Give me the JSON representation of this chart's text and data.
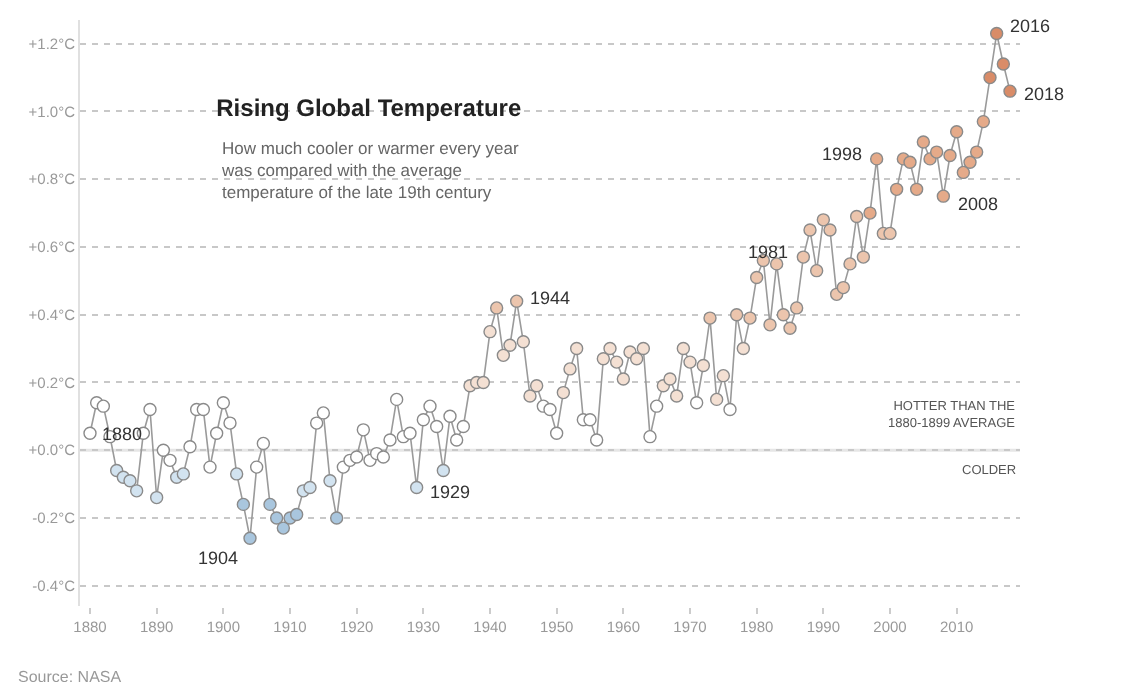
{
  "chart_data": {
    "type": "line",
    "title": "Rising Global Temperature",
    "subtitle": "How much cooler or warmer every year\nwas compared with the average\ntemperature of the late 19th century",
    "x": [
      1880,
      1881,
      1882,
      1883,
      1884,
      1885,
      1886,
      1887,
      1888,
      1889,
      1890,
      1891,
      1892,
      1893,
      1894,
      1895,
      1896,
      1897,
      1898,
      1899,
      1900,
      1901,
      1902,
      1903,
      1904,
      1905,
      1906,
      1907,
      1908,
      1909,
      1910,
      1911,
      1912,
      1913,
      1914,
      1915,
      1916,
      1917,
      1918,
      1919,
      1920,
      1921,
      1922,
      1923,
      1924,
      1925,
      1926,
      1927,
      1928,
      1929,
      1930,
      1931,
      1932,
      1933,
      1934,
      1935,
      1936,
      1937,
      1938,
      1939,
      1940,
      1941,
      1942,
      1943,
      1944,
      1945,
      1946,
      1947,
      1948,
      1949,
      1950,
      1951,
      1952,
      1953,
      1954,
      1955,
      1956,
      1957,
      1958,
      1959,
      1960,
      1961,
      1962,
      1963,
      1964,
      1965,
      1966,
      1967,
      1968,
      1969,
      1970,
      1971,
      1972,
      1973,
      1974,
      1975,
      1976,
      1977,
      1978,
      1979,
      1980,
      1981,
      1982,
      1983,
      1984,
      1985,
      1986,
      1987,
      1988,
      1989,
      1990,
      1991,
      1992,
      1993,
      1994,
      1995,
      1996,
      1997,
      1998,
      1999,
      2000,
      2001,
      2002,
      2003,
      2004,
      2005,
      2006,
      2007,
      2008,
      2009,
      2010,
      2011,
      2012,
      2013,
      2014,
      2015,
      2016,
      2017,
      2018
    ],
    "series": [
      {
        "color": "#9a9a9a",
        "values": [
          0.05,
          0.14,
          0.13,
          0.04,
          -0.06,
          -0.08,
          -0.09,
          -0.12,
          0.05,
          0.12,
          -0.14,
          0.0,
          -0.03,
          -0.08,
          -0.07,
          0.01,
          0.12,
          0.12,
          -0.05,
          0.05,
          0.14,
          0.08,
          -0.07,
          -0.16,
          -0.26,
          -0.05,
          0.02,
          -0.16,
          -0.2,
          -0.23,
          -0.2,
          -0.19,
          -0.12,
          -0.11,
          0.08,
          0.11,
          -0.09,
          -0.2,
          -0.05,
          -0.03,
          -0.02,
          0.06,
          -0.03,
          -0.01,
          -0.02,
          0.03,
          0.15,
          0.04,
          0.05,
          -0.11,
          0.09,
          0.13,
          0.07,
          -0.06,
          0.1,
          0.03,
          0.07,
          0.19,
          0.2,
          0.2,
          0.35,
          0.42,
          0.28,
          0.31,
          0.44,
          0.32,
          0.16,
          0.19,
          0.13,
          0.12,
          0.05,
          0.17,
          0.24,
          0.3,
          0.09,
          0.09,
          0.03,
          0.27,
          0.3,
          0.26,
          0.21,
          0.29,
          0.27,
          0.3,
          0.04,
          0.13,
          0.19,
          0.21,
          0.16,
          0.3,
          0.26,
          0.14,
          0.25,
          0.39,
          0.15,
          0.22,
          0.12,
          0.4,
          0.3,
          0.39,
          0.51,
          0.56,
          0.37,
          0.55,
          0.4,
          0.36,
          0.42,
          0.57,
          0.65,
          0.53,
          0.68,
          0.65,
          0.46,
          0.48,
          0.55,
          0.69,
          0.57,
          0.7,
          0.86,
          0.64,
          0.64,
          0.77,
          0.86,
          0.85,
          0.77,
          0.91,
          0.86,
          0.88,
          0.75,
          0.87,
          0.94,
          0.82,
          0.85,
          0.88,
          0.97,
          1.1,
          1.23,
          1.14,
          1.06
        ],
        "colors": [
          "#ffffff",
          "#ffffff",
          "#ffffff",
          "#ffffff",
          "#d2e3f0",
          "#d2e3f0",
          "#d2e3f0",
          "#d2e3f0",
          "#ffffff",
          "#ffffff",
          "#d2e3f0",
          "#ffffff",
          "#ffffff",
          "#d2e3f0",
          "#d2e3f0",
          "#ffffff",
          "#ffffff",
          "#ffffff",
          "#ffffff",
          "#ffffff",
          "#ffffff",
          "#ffffff",
          "#d2e3f0",
          "#a9c6de",
          "#a9c6de",
          "#ffffff",
          "#ffffff",
          "#a9c6de",
          "#a9c6de",
          "#a9c6de",
          "#a9c6de",
          "#a9c6de",
          "#d2e3f0",
          "#d2e3f0",
          "#ffffff",
          "#ffffff",
          "#d2e3f0",
          "#a9c6de",
          "#ffffff",
          "#ffffff",
          "#ffffff",
          "#ffffff",
          "#ffffff",
          "#ffffff",
          "#ffffff",
          "#ffffff",
          "#ffffff",
          "#ffffff",
          "#ffffff",
          "#d2e3f0",
          "#ffffff",
          "#ffffff",
          "#ffffff",
          "#d2e3f0",
          "#ffffff",
          "#ffffff",
          "#ffffff",
          "#f4e0d3",
          "#f4e0d3",
          "#f4e0d3",
          "#f4e0d3",
          "#ecc5ad",
          "#f4e0d3",
          "#f4e0d3",
          "#ecc5ad",
          "#f4e0d3",
          "#f4e0d3",
          "#f4e0d3",
          "#ffffff",
          "#ffffff",
          "#ffffff",
          "#f4e0d3",
          "#f4e0d3",
          "#f4e0d3",
          "#ffffff",
          "#ffffff",
          "#ffffff",
          "#f4e0d3",
          "#f4e0d3",
          "#f4e0d3",
          "#f4e0d3",
          "#f4e0d3",
          "#f4e0d3",
          "#f4e0d3",
          "#ffffff",
          "#ffffff",
          "#f4e0d3",
          "#f4e0d3",
          "#f4e0d3",
          "#f4e0d3",
          "#f4e0d3",
          "#ffffff",
          "#f4e0d3",
          "#ecc5ad",
          "#f4e0d3",
          "#f4e0d3",
          "#ffffff",
          "#ecc5ad",
          "#f4e0d3",
          "#ecc5ad",
          "#ecc5ad",
          "#ecc5ad",
          "#ecc5ad",
          "#ecc5ad",
          "#ecc5ad",
          "#ecc5ad",
          "#ecc5ad",
          "#ecc5ad",
          "#ecc5ad",
          "#ecc5ad",
          "#ecc5ad",
          "#ecc5ad",
          "#ecc5ad",
          "#ecc5ad",
          "#ecc5ad",
          "#ecc5ad",
          "#ecc5ad",
          "#e5aa89",
          "#e5aa89",
          "#ecc5ad",
          "#ecc5ad",
          "#e5aa89",
          "#e5aa89",
          "#e5aa89",
          "#e5aa89",
          "#e5aa89",
          "#e5aa89",
          "#e5aa89",
          "#e5aa89",
          "#e5aa89",
          "#e5aa89",
          "#e5aa89",
          "#e5aa89",
          "#e5aa89",
          "#e5aa89",
          "#d98c68",
          "#d98c68",
          "#d98c68",
          "#d98c68"
        ]
      }
    ],
    "xlim": [
      1878.5,
      2019.5
    ],
    "xticks": [
      1880,
      1890,
      1900,
      1910,
      1920,
      1930,
      1940,
      1950,
      1960,
      1970,
      1980,
      1990,
      2000,
      2010
    ],
    "ylim": [
      -0.46,
      1.27
    ],
    "yticks": [
      {
        "value": 1.2,
        "label": "+1.2°C"
      },
      {
        "value": 1.0,
        "label": "+1.0°C"
      },
      {
        "value": 0.8,
        "label": "+0.8°C"
      },
      {
        "value": 0.6,
        "label": "+0.6°C"
      },
      {
        "value": 0.4,
        "label": "+0.4°C"
      },
      {
        "value": 0.2,
        "label": "+0.2°C"
      },
      {
        "value": 0.0,
        "label": "+0.0°C"
      },
      {
        "value": -0.2,
        "label": "-0.2°C"
      },
      {
        "value": -0.4,
        "label": "-0.4°C"
      }
    ],
    "grid": "y",
    "legend": false,
    "marker": "circle",
    "line_style": "solid",
    "ref_lines": [
      {
        "axis": "y",
        "value": 0,
        "color": "#e6e6e6"
      }
    ],
    "annotations": [
      {
        "text": "1880",
        "x": 1880,
        "y": 0.05
      },
      {
        "text": "1904",
        "x": 1904,
        "y": -0.26
      },
      {
        "text": "1929",
        "x": 1929,
        "y": -0.11
      },
      {
        "text": "1944",
        "x": 1944,
        "y": 0.44
      },
      {
        "text": "1981",
        "x": 1981,
        "y": 0.56
      },
      {
        "text": "1998",
        "x": 1998,
        "y": 0.86
      },
      {
        "text": "2008",
        "x": 2008,
        "y": 0.75
      },
      {
        "text": "2016",
        "x": 2016,
        "y": 1.23
      },
      {
        "text": "2018",
        "x": 2018,
        "y": 1.06
      },
      "HOTTER THAN THE\n1880-1899 AVERAGE",
      "COLDER",
      "Source: NASA"
    ]
  }
}
